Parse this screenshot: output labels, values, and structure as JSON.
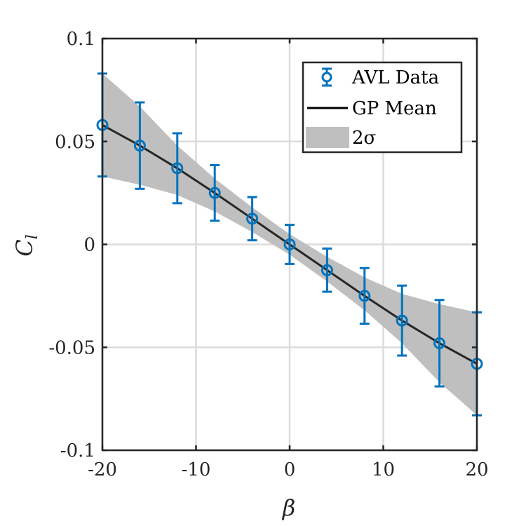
{
  "chart_data": {
    "type": "line",
    "xlabel": "β",
    "ylabel": "C",
    "ylabel_subscript": "l",
    "xlim": [
      -20,
      20
    ],
    "ylim": [
      -0.1,
      0.1
    ],
    "x_ticks": [
      -20,
      -10,
      0,
      10,
      20
    ],
    "x_tick_labels": [
      "-20",
      "-10",
      "0",
      "10",
      "20"
    ],
    "y_ticks": [
      -0.1,
      -0.05,
      0,
      0.05,
      0.1
    ],
    "y_tick_labels": [
      "-0.1",
      "-0.05",
      "0",
      "0.05",
      "0.1"
    ],
    "grid": true,
    "legend_position": "top-right",
    "series": [
      {
        "name": "AVL Data",
        "kind": "errorbar",
        "color": "#0072BD",
        "x": [
          -20,
          -16,
          -12,
          -8,
          -4,
          0,
          4,
          8,
          12,
          16,
          20
        ],
        "y": [
          0.058,
          0.048,
          0.037,
          0.025,
          0.0125,
          0,
          -0.0125,
          -0.025,
          -0.037,
          -0.048,
          -0.058
        ],
        "err": [
          0.025,
          0.021,
          0.017,
          0.0135,
          0.0105,
          0.0095,
          0.0105,
          0.0135,
          0.017,
          0.021,
          0.025
        ]
      },
      {
        "name": "GP Mean",
        "kind": "line",
        "color": "#000000",
        "x": [
          -20,
          -16,
          -12,
          -8,
          -4,
          0,
          4,
          8,
          12,
          16,
          20
        ],
        "y": [
          0.058,
          0.048,
          0.037,
          0.025,
          0.0125,
          0,
          -0.0125,
          -0.025,
          -0.037,
          -0.048,
          -0.058
        ]
      },
      {
        "name": "2σ",
        "kind": "band",
        "color": "#BFBFBF",
        "x": [
          -20,
          -16,
          -12,
          -8,
          -4,
          0,
          4,
          8,
          12,
          16,
          20
        ],
        "lower": [
          0.033,
          0.029,
          0.024,
          0.016,
          0.006,
          -0.005,
          -0.018,
          -0.032,
          -0.048,
          -0.067,
          -0.083
        ],
        "upper": [
          0.083,
          0.067,
          0.048,
          0.032,
          0.018,
          0.005,
          -0.006,
          -0.016,
          -0.024,
          -0.029,
          -0.033
        ]
      }
    ]
  }
}
